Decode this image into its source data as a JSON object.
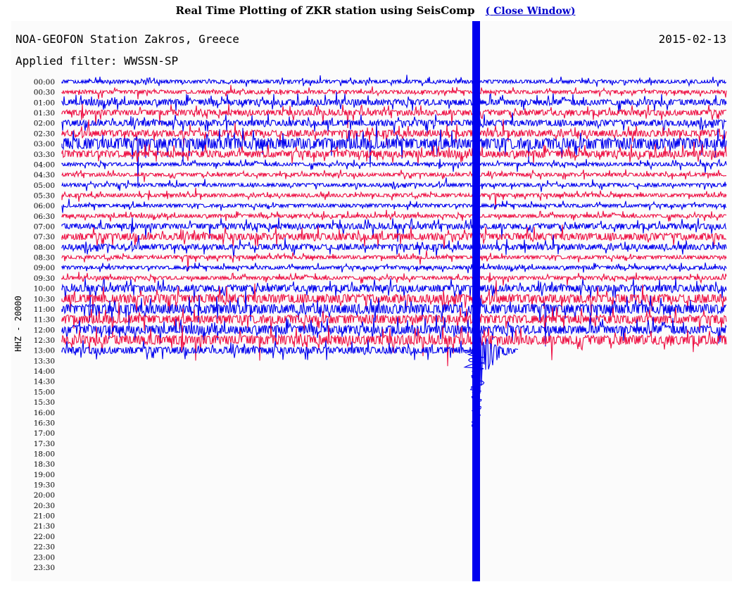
{
  "page": {
    "title": "Real Time Plotting of ZKR station using SeisComp",
    "close_link": "Close Window",
    "paren_open": "(",
    "paren_close": ")"
  },
  "plot": {
    "station_label": "NOA-GEOFON Station Zakros, Greece",
    "date": "2015-02-13",
    "filter_label": "Applied filter: WWSSN-SP",
    "channel_label": "HHZ - 20000",
    "colors": {
      "trace_a": "#0000ee",
      "trace_b": "#ee1144",
      "background": "#fbfbfb"
    },
    "time_labels": [
      "00:00",
      "00:30",
      "01:00",
      "01:30",
      "02:00",
      "02:30",
      "03:00",
      "03:30",
      "04:00",
      "04:30",
      "05:00",
      "05:30",
      "06:00",
      "06:30",
      "07:00",
      "07:30",
      "08:00",
      "08:30",
      "09:00",
      "09:30",
      "10:00",
      "10:30",
      "11:00",
      "11:30",
      "12:00",
      "12:30",
      "13:00",
      "13:30",
      "14:00",
      "14:30",
      "15:00",
      "15:30",
      "16:00",
      "16:30",
      "17:00",
      "17:30",
      "18:00",
      "18:30",
      "19:00",
      "19:30",
      "20:00",
      "20:30",
      "21:00",
      "21:30",
      "22:00",
      "22:30",
      "23:00",
      "23:30"
    ],
    "rows_recorded": 27,
    "quake_row": "13:00"
  }
}
